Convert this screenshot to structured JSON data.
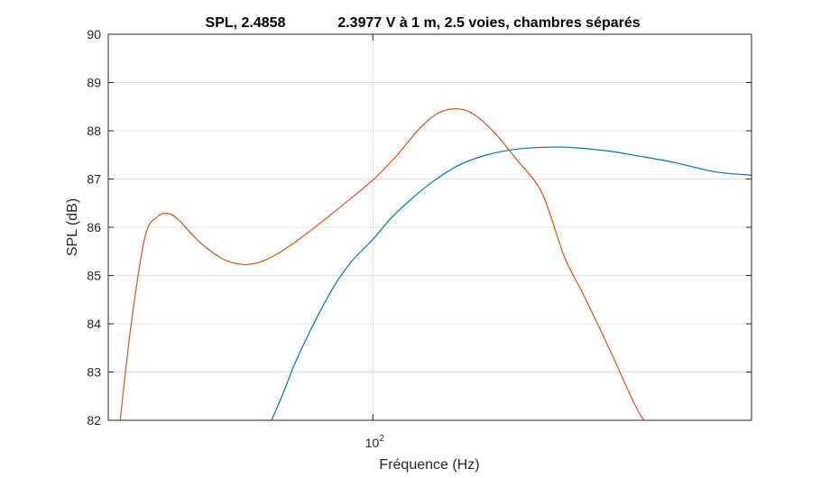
{
  "chart_data": {
    "type": "line",
    "title_left": "SPL, 2.4858",
    "title_right": "2.3977 V à 1 m, 2.5 voies, chambres séparés",
    "xlabel": "Fréquence (Hz)",
    "ylabel": "SPL (dB)",
    "x_scale": "log",
    "xlim": [
      20,
      1000
    ],
    "ylim": [
      82,
      90
    ],
    "y_ticks": [
      82,
      83,
      84,
      85,
      86,
      87,
      88,
      89,
      90
    ],
    "x_ticks": [
      {
        "value": 100,
        "base": "10",
        "exponent": "2"
      }
    ],
    "grid": true,
    "colors": {
      "axis": "#262626",
      "grid": "#dfdfdf",
      "series_1": "#0072bd",
      "series_2": "#d95319"
    },
    "series": [
      {
        "color": "#0072bd",
        "points": [
          [
            54,
            82.0
          ],
          [
            58,
            82.57
          ],
          [
            62,
            83.15
          ],
          [
            67,
            83.72
          ],
          [
            73,
            84.3
          ],
          [
            80,
            84.85
          ],
          [
            88,
            85.3
          ],
          [
            100,
            85.75
          ],
          [
            112,
            86.2
          ],
          [
            127,
            86.6
          ],
          [
            146,
            86.98
          ],
          [
            170,
            87.3
          ],
          [
            200,
            87.5
          ],
          [
            240,
            87.62
          ],
          [
            290,
            87.66
          ],
          [
            340,
            87.65
          ],
          [
            420,
            87.58
          ],
          [
            500,
            87.48
          ],
          [
            620,
            87.35
          ],
          [
            800,
            87.15
          ],
          [
            1000,
            87.08
          ]
        ]
      },
      {
        "color": "#d95319",
        "points": [
          [
            21.5,
            82.0
          ],
          [
            23,
            84.0
          ],
          [
            25,
            85.8
          ],
          [
            27,
            86.22
          ],
          [
            29,
            86.28
          ],
          [
            31,
            86.12
          ],
          [
            33,
            85.88
          ],
          [
            36,
            85.6
          ],
          [
            40,
            85.35
          ],
          [
            44,
            85.24
          ],
          [
            48,
            85.24
          ],
          [
            53,
            85.35
          ],
          [
            60,
            85.6
          ],
          [
            70,
            85.99
          ],
          [
            82,
            86.42
          ],
          [
            100,
            86.98
          ],
          [
            116,
            87.5
          ],
          [
            133,
            88.05
          ],
          [
            150,
            88.38
          ],
          [
            170,
            88.45
          ],
          [
            188,
            88.3
          ],
          [
            210,
            87.95
          ],
          [
            240,
            87.4
          ],
          [
            280,
            86.7
          ],
          [
            320,
            85.4
          ],
          [
            360,
            84.6
          ],
          [
            420,
            83.5
          ],
          [
            490,
            82.35
          ],
          [
            520,
            82.0
          ]
        ]
      }
    ]
  }
}
